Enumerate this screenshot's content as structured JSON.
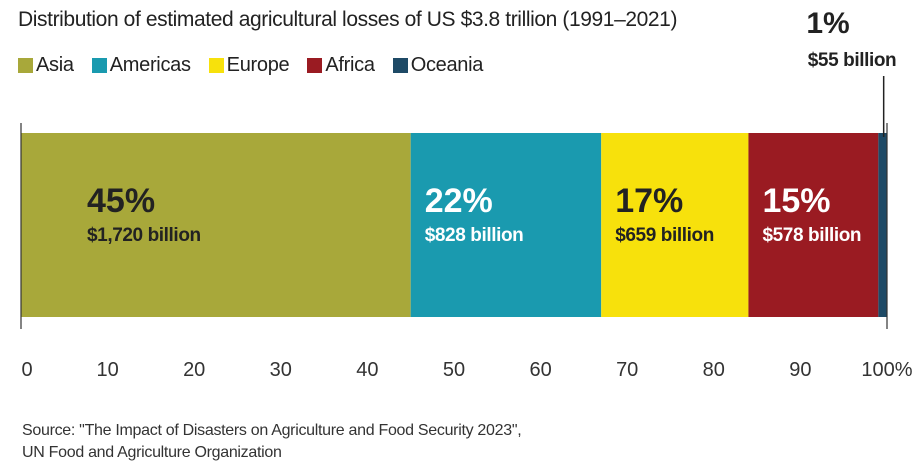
{
  "chart_data": {
    "type": "bar",
    "orientation": "horizontal-stacked-100",
    "title": "Distribution of  estimated agricultural losses of US $3.8 trillion (1991–2021)",
    "categories": [
      "Asia",
      "Americas",
      "Europe",
      "Africa",
      "Oceania"
    ],
    "values": [
      45,
      22,
      17,
      15,
      1
    ],
    "value_labels": [
      "45%",
      "22%",
      "17%",
      "15%",
      "1%"
    ],
    "amount_labels": [
      "$1,720 billion",
      "$828 billion",
      "$659 billion",
      "$578 billion",
      "$55 billion"
    ],
    "colors": [
      "#a8a83a",
      "#1a9aaf",
      "#f7e10c",
      "#9a1b22",
      "#1e4a66"
    ],
    "label_colors": [
      "#222222",
      "#ffffff",
      "#222222",
      "#ffffff",
      "#222222"
    ],
    "xlim": [
      0,
      100
    ],
    "xticks": [
      "0",
      "10",
      "20",
      "30",
      "40",
      "50",
      "60",
      "70",
      "80",
      "90",
      "100%"
    ],
    "xlabel": "",
    "ylabel": "",
    "grid": false
  },
  "source": {
    "line1": "Source: \"The Impact of Disasters on Agriculture and Food Security 2023\",",
    "line2": "UN Food and Agriculture Organization"
  }
}
